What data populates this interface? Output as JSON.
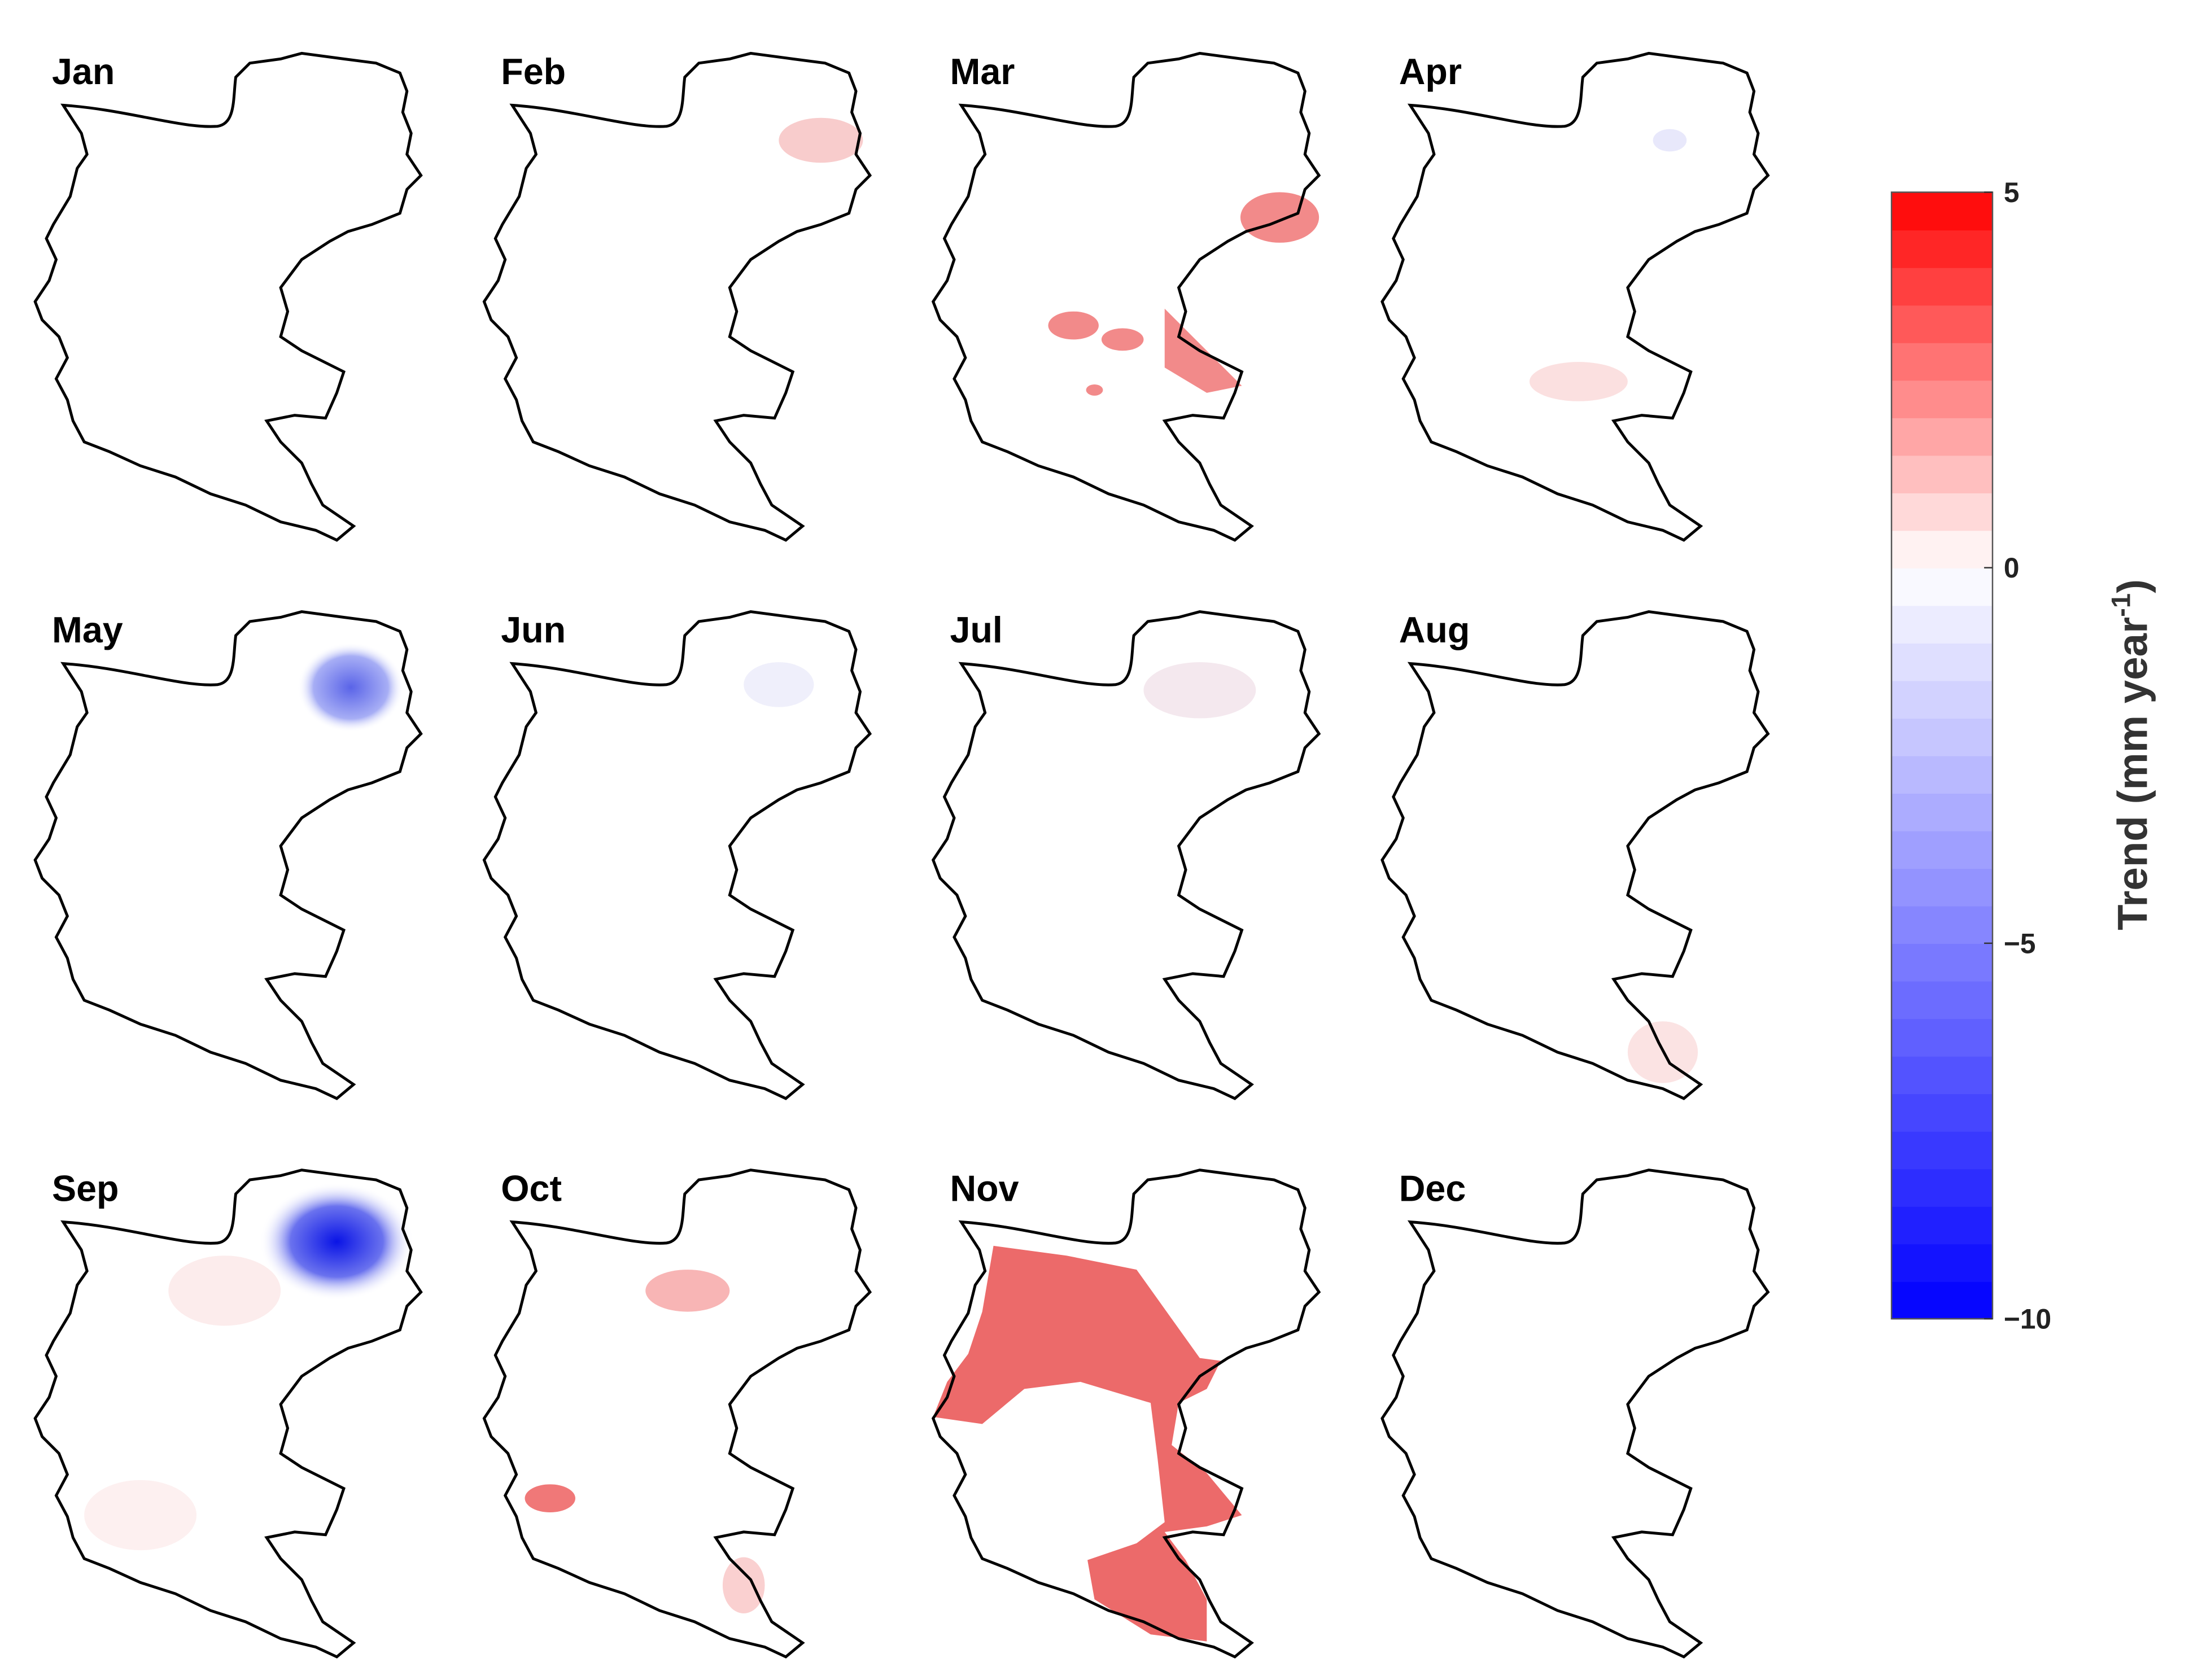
{
  "chart_data": {
    "type": "map",
    "panels": [
      "Jan",
      "Feb",
      "Mar",
      "Apr",
      "May",
      "Jun",
      "Jul",
      "Aug",
      "Sep",
      "Oct",
      "Nov",
      "Dec"
    ],
    "colorbar": {
      "lim": [
        -10,
        5
      ],
      "ticks": [
        {
          "value": 5,
          "label": "5"
        },
        {
          "value": 0,
          "label": "0"
        },
        {
          "value": -5,
          "label": "−5"
        },
        {
          "value": -10,
          "label": "−10"
        }
      ],
      "label": {
        "text": "Trend (mm year",
        "superscript": "-1",
        "suffix": ")"
      }
    }
  }
}
